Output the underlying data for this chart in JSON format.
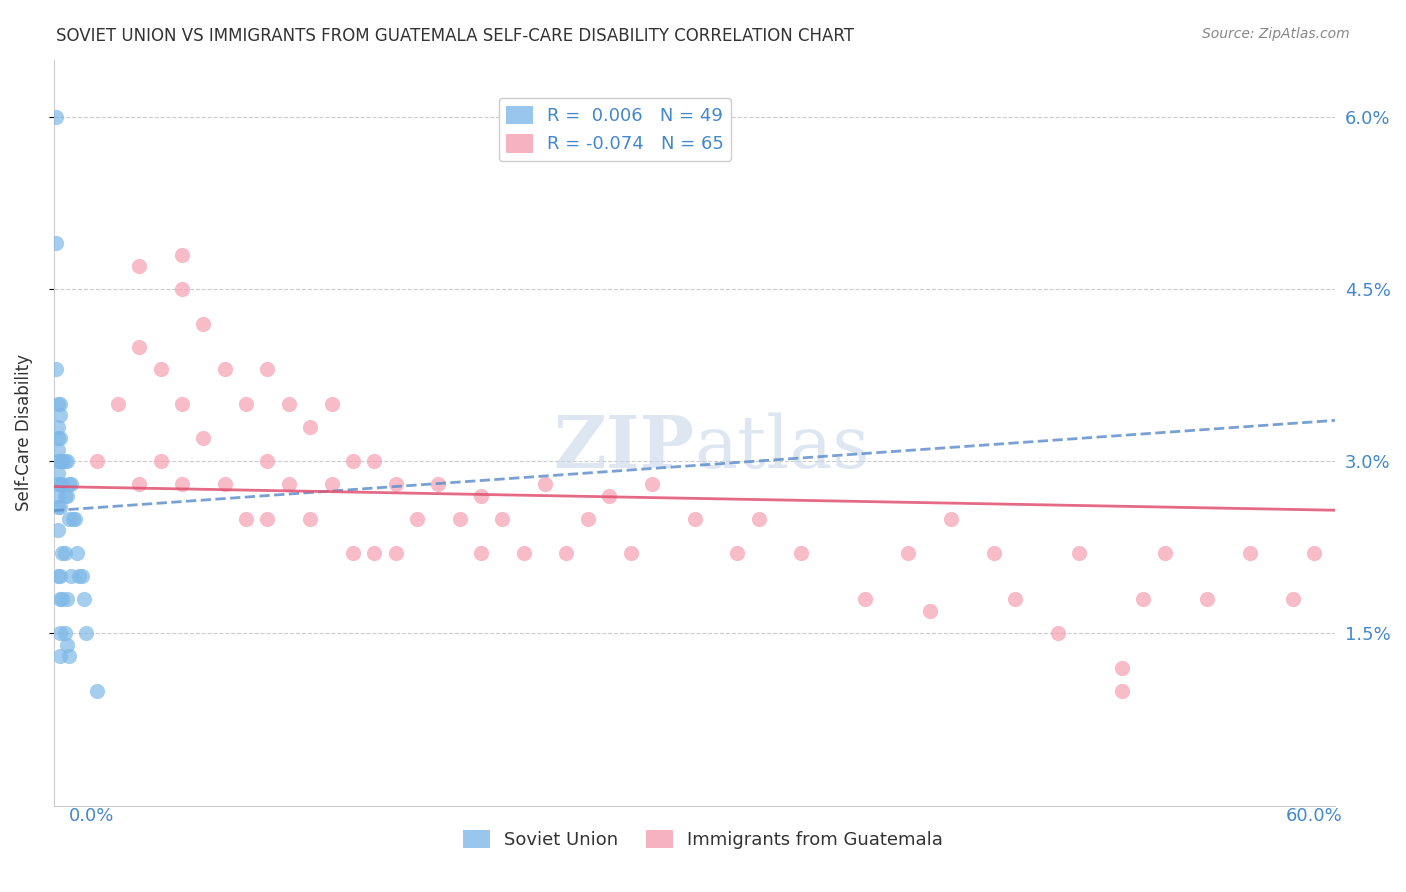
{
  "title": "SOVIET UNION VS IMMIGRANTS FROM GUATEMALA SELF-CARE DISABILITY CORRELATION CHART",
  "source": "Source: ZipAtlas.com",
  "ylabel": "Self-Care Disability",
  "ytick_labels": [
    "6.0%",
    "4.5%",
    "3.0%",
    "1.5%"
  ],
  "ytick_values": [
    0.06,
    0.045,
    0.03,
    0.015
  ],
  "xlim": [
    0.0,
    0.6
  ],
  "ylim": [
    0.0,
    0.065
  ],
  "soviet_color": "#7EB8E8",
  "guatemala_color": "#F4A0B0",
  "line_blue_color": "#6090CC",
  "line_pink_color": "#E05070",
  "ytick_color": "#4488CC",
  "watermark_color": "#C8D8E8",
  "soviet_x": [
    0.001,
    0.001,
    0.001,
    0.002,
    0.002,
    0.002,
    0.002,
    0.002,
    0.002,
    0.002,
    0.002,
    0.002,
    0.002,
    0.002,
    0.003,
    0.003,
    0.003,
    0.003,
    0.003,
    0.003,
    0.003,
    0.003,
    0.003,
    0.003,
    0.004,
    0.004,
    0.004,
    0.004,
    0.005,
    0.005,
    0.005,
    0.005,
    0.006,
    0.006,
    0.006,
    0.006,
    0.007,
    0.007,
    0.007,
    0.008,
    0.008,
    0.009,
    0.01,
    0.011,
    0.012,
    0.013,
    0.014,
    0.015,
    0.02
  ],
  "soviet_y": [
    0.06,
    0.049,
    0.038,
    0.035,
    0.033,
    0.032,
    0.031,
    0.03,
    0.029,
    0.028,
    0.027,
    0.026,
    0.024,
    0.02,
    0.035,
    0.034,
    0.032,
    0.03,
    0.028,
    0.026,
    0.02,
    0.018,
    0.015,
    0.013,
    0.03,
    0.028,
    0.022,
    0.018,
    0.03,
    0.027,
    0.022,
    0.015,
    0.03,
    0.027,
    0.018,
    0.014,
    0.028,
    0.025,
    0.013,
    0.028,
    0.02,
    0.025,
    0.025,
    0.022,
    0.02,
    0.02,
    0.018,
    0.015,
    0.01
  ],
  "guatemala_x": [
    0.02,
    0.03,
    0.04,
    0.04,
    0.05,
    0.05,
    0.06,
    0.06,
    0.06,
    0.07,
    0.07,
    0.08,
    0.08,
    0.09,
    0.09,
    0.1,
    0.1,
    0.1,
    0.11,
    0.11,
    0.12,
    0.12,
    0.13,
    0.13,
    0.14,
    0.14,
    0.15,
    0.15,
    0.16,
    0.16,
    0.17,
    0.18,
    0.19,
    0.2,
    0.2,
    0.21,
    0.22,
    0.23,
    0.24,
    0.25,
    0.26,
    0.27,
    0.28,
    0.3,
    0.32,
    0.33,
    0.35,
    0.38,
    0.4,
    0.41,
    0.42,
    0.44,
    0.45,
    0.47,
    0.48,
    0.5,
    0.51,
    0.52,
    0.54,
    0.56,
    0.58,
    0.59,
    0.04,
    0.06,
    0.5
  ],
  "guatemala_y": [
    0.03,
    0.035,
    0.04,
    0.028,
    0.038,
    0.03,
    0.045,
    0.035,
    0.028,
    0.042,
    0.032,
    0.038,
    0.028,
    0.035,
    0.025,
    0.038,
    0.03,
    0.025,
    0.035,
    0.028,
    0.033,
    0.025,
    0.035,
    0.028,
    0.03,
    0.022,
    0.03,
    0.022,
    0.028,
    0.022,
    0.025,
    0.028,
    0.025,
    0.022,
    0.027,
    0.025,
    0.022,
    0.028,
    0.022,
    0.025,
    0.027,
    0.022,
    0.028,
    0.025,
    0.022,
    0.025,
    0.022,
    0.018,
    0.022,
    0.017,
    0.025,
    0.022,
    0.018,
    0.015,
    0.022,
    0.01,
    0.018,
    0.022,
    0.018,
    0.022,
    0.018,
    0.022,
    0.047,
    0.048,
    0.012
  ],
  "r_soviet": 0.006,
  "r_guat": -0.074,
  "n_soviet": 49,
  "n_guat": 65
}
